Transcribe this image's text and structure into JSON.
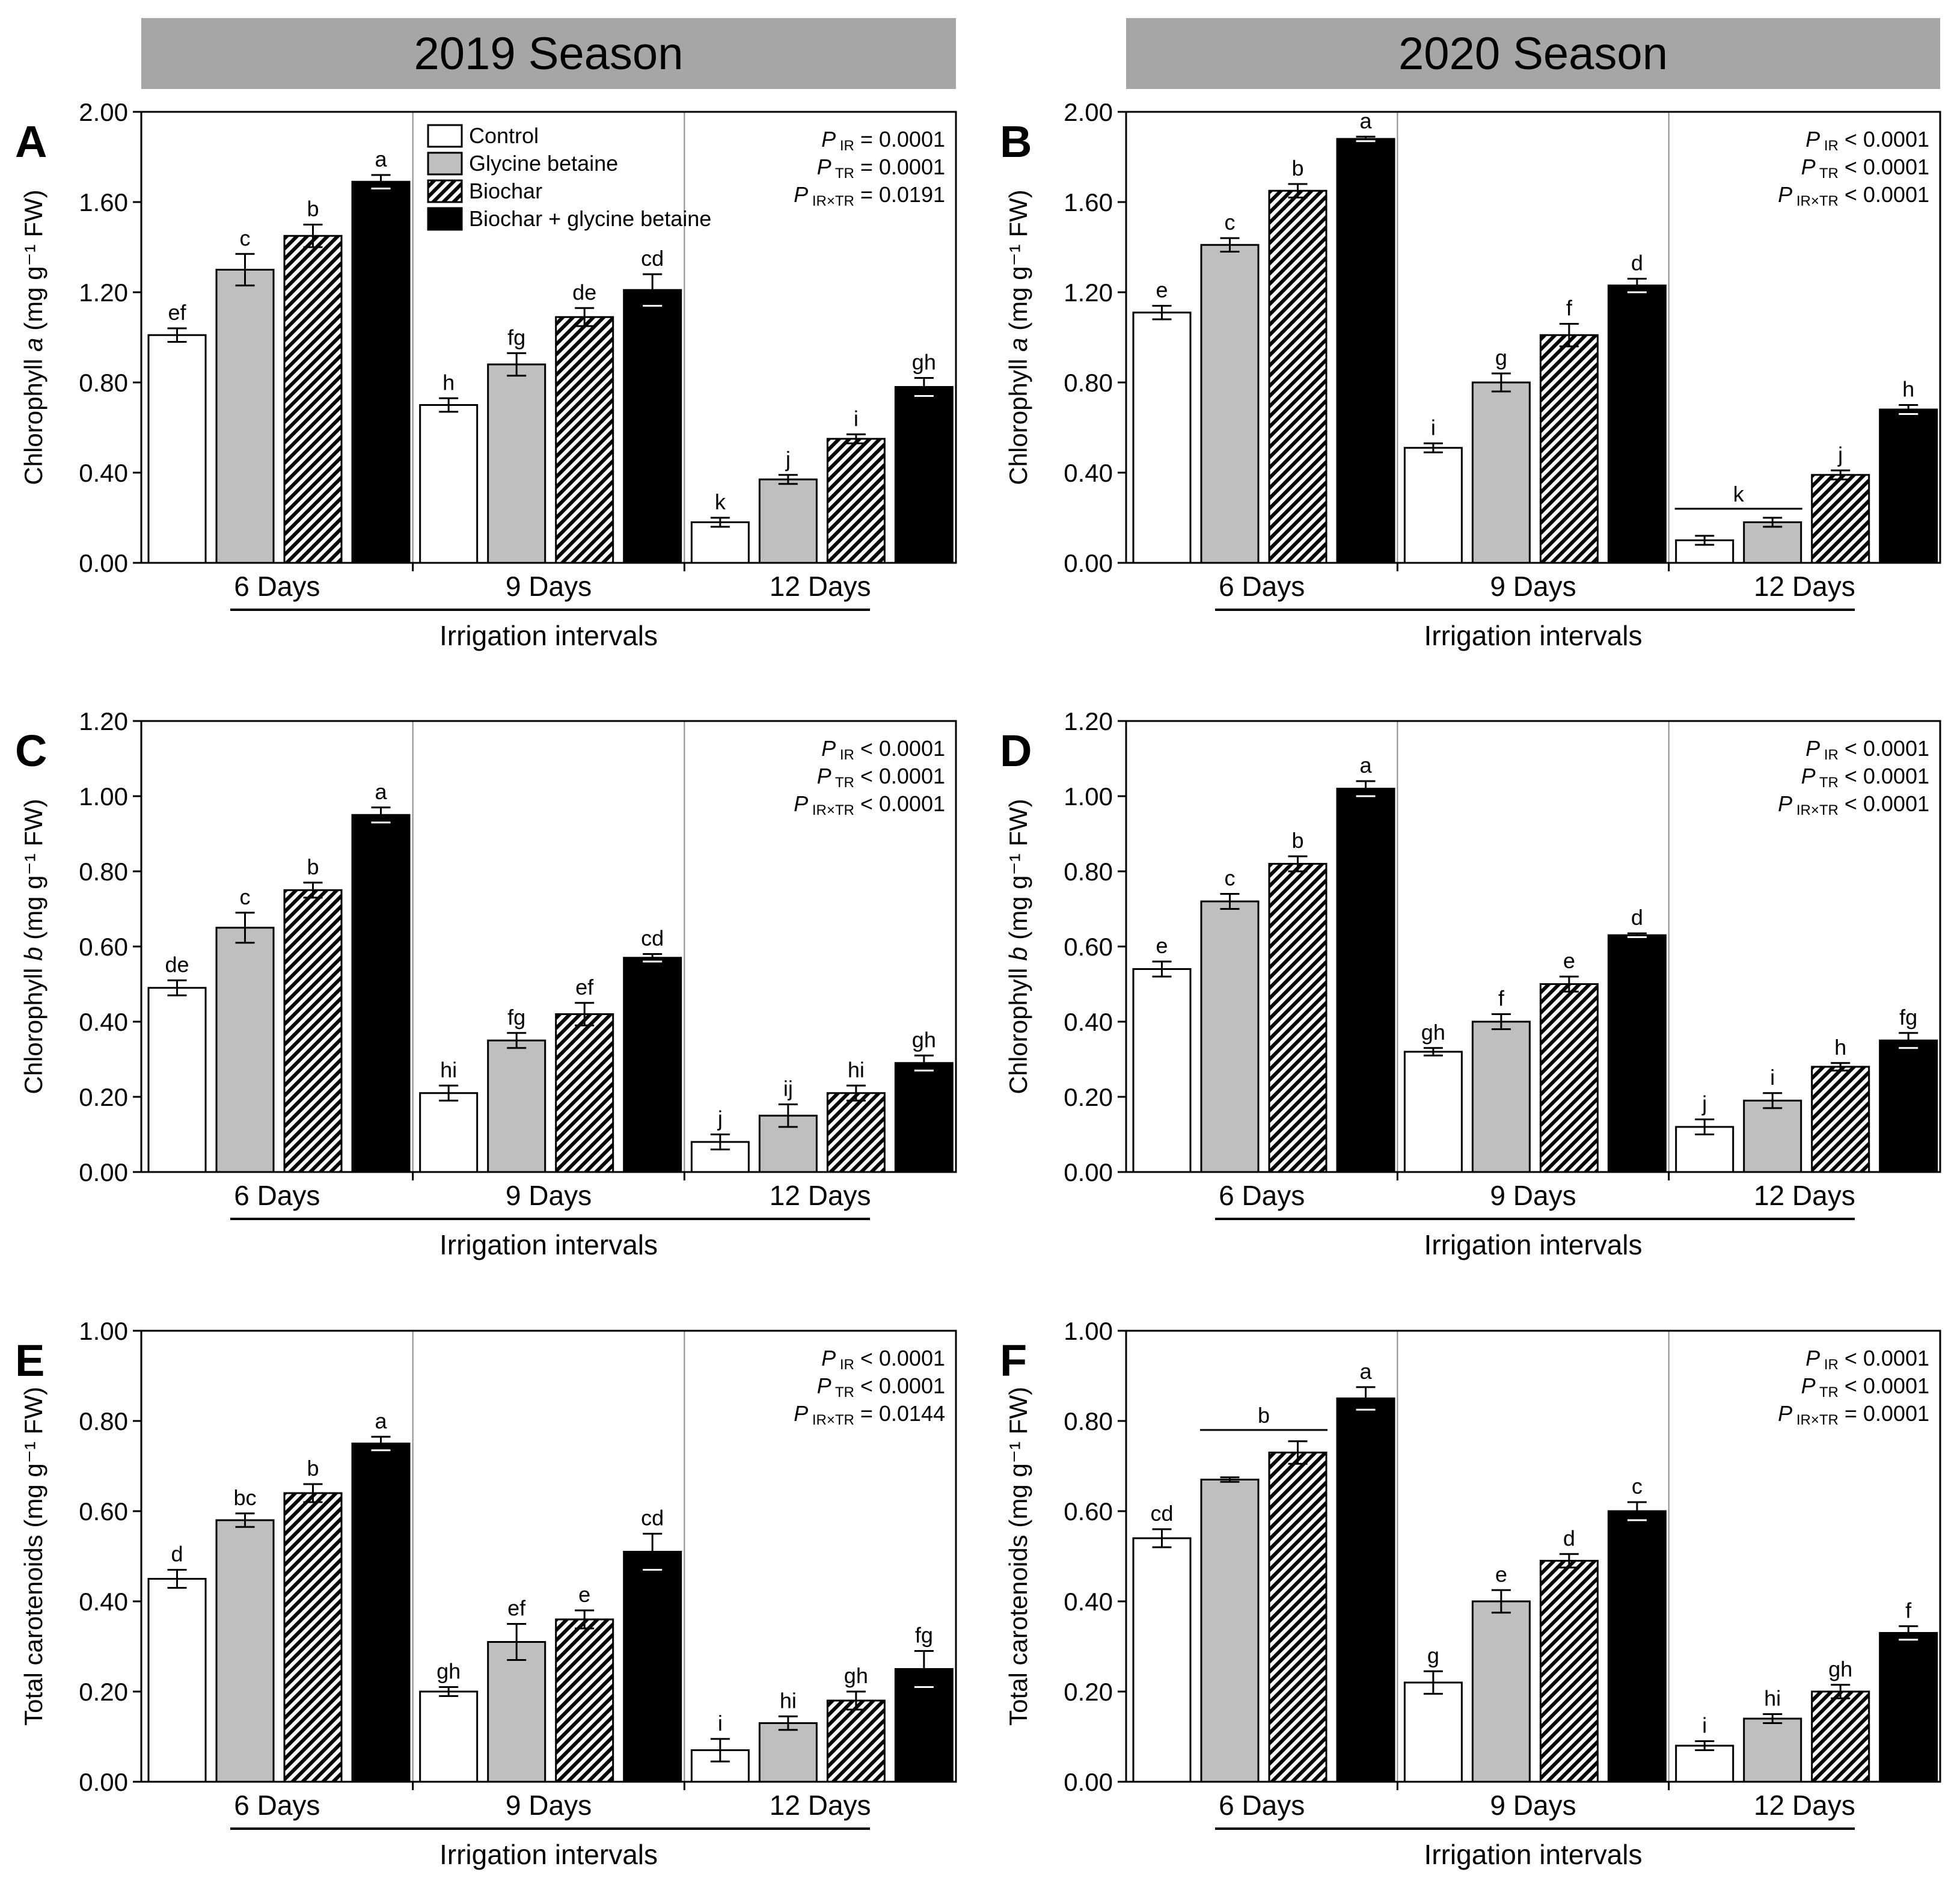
{
  "seasons": {
    "left": "2019 Season",
    "right": "2020 Season"
  },
  "legend": {
    "control": "Control",
    "glycine_betaine": "Glycine betaine",
    "biochar": "Biochar",
    "biochar_gb": "Biochar + glycine betaine"
  },
  "colors": {
    "control": "#ffffff",
    "glycine_betaine": "#bfbfbf",
    "biochar": "hatched",
    "biochar_gb": "#000000"
  },
  "chart_data": [
    {
      "panel": "A",
      "season": "2019 Season",
      "type": "bar",
      "ylabel_main": "Chlorophyll",
      "ylabel_italic": "a",
      "ylabel_unit": "(mg g⁻¹ FW)",
      "ylim": [
        0,
        2.0
      ],
      "yticks": [
        "0.00",
        "0.40",
        "0.80",
        "1.20",
        "1.60",
        "2.00"
      ],
      "xlabel": "Irrigation intervals",
      "groups": [
        "6 Days",
        "9 Days",
        "12 Days"
      ],
      "series": [
        {
          "name": "Control",
          "values": [
            1.01,
            0.7,
            0.18
          ],
          "errors": [
            0.03,
            0.03,
            0.02
          ],
          "letters": [
            "ef",
            "h",
            "k"
          ]
        },
        {
          "name": "Glycine betaine",
          "values": [
            1.3,
            0.88,
            0.37
          ],
          "errors": [
            0.07,
            0.05,
            0.02
          ],
          "letters": [
            "c",
            "fg",
            "j"
          ]
        },
        {
          "name": "Biochar",
          "values": [
            1.45,
            1.09,
            0.55
          ],
          "errors": [
            0.05,
            0.04,
            0.02
          ],
          "letters": [
            "b",
            "de",
            "i"
          ]
        },
        {
          "name": "Biochar + glycine betaine",
          "values": [
            1.69,
            1.21,
            0.78
          ],
          "errors": [
            0.03,
            0.07,
            0.04
          ],
          "letters": [
            "a",
            "cd",
            "gh"
          ]
        }
      ],
      "pvalues": [
        {
          "sub": "IR",
          "rel": "= 0.0001"
        },
        {
          "sub": "TR",
          "rel": "= 0.0001"
        },
        {
          "sub": "IR×TR",
          "rel": "= 0.0191"
        }
      ],
      "group_letters": []
    },
    {
      "panel": "B",
      "season": "2020 Season",
      "type": "bar",
      "ylabel_main": "Chlorophyll",
      "ylabel_italic": "a",
      "ylabel_unit": "(mg g⁻¹ FW)",
      "ylim": [
        0,
        2.0
      ],
      "yticks": [
        "0.00",
        "0.40",
        "0.80",
        "1.20",
        "1.60",
        "2.00"
      ],
      "xlabel": "Irrigation intervals",
      "groups": [
        "6 Days",
        "9 Days",
        "12 Days"
      ],
      "series": [
        {
          "name": "Control",
          "values": [
            1.11,
            0.51,
            0.1
          ],
          "errors": [
            0.03,
            0.02,
            0.02
          ],
          "letters": [
            "e",
            "i",
            ""
          ]
        },
        {
          "name": "Glycine betaine",
          "values": [
            1.41,
            0.8,
            0.18
          ],
          "errors": [
            0.03,
            0.04,
            0.02
          ],
          "letters": [
            "c",
            "g",
            ""
          ]
        },
        {
          "name": "Biochar",
          "values": [
            1.65,
            1.01,
            0.39
          ],
          "errors": [
            0.03,
            0.05,
            0.02
          ],
          "letters": [
            "b",
            "f",
            "j"
          ]
        },
        {
          "name": "Biochar + glycine betaine",
          "values": [
            1.88,
            1.23,
            0.68
          ],
          "errors": [
            0.01,
            0.03,
            0.02
          ],
          "letters": [
            "a",
            "d",
            "h"
          ]
        }
      ],
      "pvalues": [
        {
          "sub": "IR",
          "rel": "< 0.0001"
        },
        {
          "sub": "TR",
          "rel": "< 0.0001"
        },
        {
          "sub": "IR×TR",
          "rel": "< 0.0001"
        }
      ],
      "group_letters": [
        {
          "group": 2,
          "from": 0,
          "to": 1,
          "y": 0.24,
          "letter": "k"
        }
      ]
    },
    {
      "panel": "C",
      "season": "2019 Season",
      "type": "bar",
      "ylabel_main": "Chlorophyll",
      "ylabel_italic": "b",
      "ylabel_unit": "(mg g⁻¹ FW)",
      "ylim": [
        0,
        1.2
      ],
      "yticks": [
        "0.00",
        "0.20",
        "0.40",
        "0.60",
        "0.80",
        "1.00",
        "1.20"
      ],
      "xlabel": "Irrigation intervals",
      "groups": [
        "6 Days",
        "9 Days",
        "12 Days"
      ],
      "series": [
        {
          "name": "Control",
          "values": [
            0.49,
            0.21,
            0.08
          ],
          "errors": [
            0.02,
            0.02,
            0.02
          ],
          "letters": [
            "de",
            "hi",
            "j"
          ]
        },
        {
          "name": "Glycine betaine",
          "values": [
            0.65,
            0.35,
            0.15
          ],
          "errors": [
            0.04,
            0.02,
            0.03
          ],
          "letters": [
            "c",
            "fg",
            "ij"
          ]
        },
        {
          "name": "Biochar",
          "values": [
            0.75,
            0.42,
            0.21
          ],
          "errors": [
            0.02,
            0.03,
            0.02
          ],
          "letters": [
            "b",
            "ef",
            "hi"
          ]
        },
        {
          "name": "Biochar + glycine betaine",
          "values": [
            0.95,
            0.57,
            0.29
          ],
          "errors": [
            0.02,
            0.01,
            0.02
          ],
          "letters": [
            "a",
            "cd",
            "gh"
          ]
        }
      ],
      "pvalues": [
        {
          "sub": "IR",
          "rel": "< 0.0001"
        },
        {
          "sub": "TR",
          "rel": "< 0.0001"
        },
        {
          "sub": "IR×TR",
          "rel": "< 0.0001"
        }
      ],
      "group_letters": []
    },
    {
      "panel": "D",
      "season": "2020 Season",
      "type": "bar",
      "ylabel_main": "Chlorophyll",
      "ylabel_italic": "b",
      "ylabel_unit": "(mg g⁻¹ FW)",
      "ylim": [
        0,
        1.2
      ],
      "yticks": [
        "0.00",
        "0.20",
        "0.40",
        "0.60",
        "0.80",
        "1.00",
        "1.20"
      ],
      "xlabel": "Irrigation intervals",
      "groups": [
        "6 Days",
        "9 Days",
        "12 Days"
      ],
      "series": [
        {
          "name": "Control",
          "values": [
            0.54,
            0.32,
            0.12
          ],
          "errors": [
            0.02,
            0.01,
            0.02
          ],
          "letters": [
            "e",
            "gh",
            "j"
          ]
        },
        {
          "name": "Glycine betaine",
          "values": [
            0.72,
            0.4,
            0.19
          ],
          "errors": [
            0.02,
            0.02,
            0.02
          ],
          "letters": [
            "c",
            "f",
            "i"
          ]
        },
        {
          "name": "Biochar",
          "values": [
            0.82,
            0.5,
            0.28
          ],
          "errors": [
            0.02,
            0.02,
            0.01
          ],
          "letters": [
            "b",
            "e",
            "h"
          ]
        },
        {
          "name": "Biochar + glycine betaine",
          "values": [
            1.02,
            0.63,
            0.35
          ],
          "errors": [
            0.02,
            0.005,
            0.02
          ],
          "letters": [
            "a",
            "d",
            "fg"
          ]
        }
      ],
      "pvalues": [
        {
          "sub": "IR",
          "rel": "< 0.0001"
        },
        {
          "sub": "TR",
          "rel": "< 0.0001"
        },
        {
          "sub": "IR×TR",
          "rel": "< 0.0001"
        }
      ],
      "group_letters": []
    },
    {
      "panel": "E",
      "season": "2019 Season",
      "type": "bar",
      "ylabel_main": "Total carotenoids",
      "ylabel_italic": "",
      "ylabel_unit": "(mg g⁻¹ FW)",
      "ylim": [
        0,
        1.0
      ],
      "yticks": [
        "0.00",
        "0.20",
        "0.40",
        "0.60",
        "0.80",
        "1.00"
      ],
      "xlabel": "Irrigation intervals",
      "groups": [
        "6 Days",
        "9 Days",
        "12 Days"
      ],
      "series": [
        {
          "name": "Control",
          "values": [
            0.45,
            0.2,
            0.07
          ],
          "errors": [
            0.02,
            0.01,
            0.025
          ],
          "letters": [
            "d",
            "gh",
            "i"
          ]
        },
        {
          "name": "Glycine betaine",
          "values": [
            0.58,
            0.31,
            0.13
          ],
          "errors": [
            0.015,
            0.04,
            0.015
          ],
          "letters": [
            "bc",
            "ef",
            "hi"
          ]
        },
        {
          "name": "Biochar",
          "values": [
            0.64,
            0.36,
            0.18
          ],
          "errors": [
            0.02,
            0.02,
            0.02
          ],
          "letters": [
            "b",
            "e",
            "gh"
          ]
        },
        {
          "name": "Biochar + glycine betaine",
          "values": [
            0.75,
            0.51,
            0.25
          ],
          "errors": [
            0.015,
            0.04,
            0.04
          ],
          "letters": [
            "a",
            "cd",
            "fg"
          ]
        }
      ],
      "pvalues": [
        {
          "sub": "IR",
          "rel": "< 0.0001"
        },
        {
          "sub": "TR",
          "rel": "< 0.0001"
        },
        {
          "sub": "IR×TR",
          "rel": "= 0.0144"
        }
      ],
      "group_letters": []
    },
    {
      "panel": "F",
      "season": "2020 Season",
      "type": "bar",
      "ylabel_main": "Total carotenoids",
      "ylabel_italic": "",
      "ylabel_unit": "(mg g⁻¹ FW)",
      "ylim": [
        0,
        1.0
      ],
      "yticks": [
        "0.00",
        "0.20",
        "0.40",
        "0.60",
        "0.80",
        "1.00"
      ],
      "xlabel": "Irrigation intervals",
      "groups": [
        "6 Days",
        "9 Days",
        "12 Days"
      ],
      "series": [
        {
          "name": "Control",
          "values": [
            0.54,
            0.22,
            0.08
          ],
          "errors": [
            0.02,
            0.025,
            0.01
          ],
          "letters": [
            "cd",
            "g",
            "i"
          ]
        },
        {
          "name": "Glycine betaine",
          "values": [
            0.67,
            0.4,
            0.14
          ],
          "errors": [
            0.005,
            0.025,
            0.01
          ],
          "letters": [
            "",
            "e",
            "hi"
          ]
        },
        {
          "name": "Biochar",
          "values": [
            0.73,
            0.49,
            0.2
          ],
          "errors": [
            0.025,
            0.015,
            0.015
          ],
          "letters": [
            "",
            "d",
            "gh"
          ]
        },
        {
          "name": "Biochar + glycine betaine",
          "values": [
            0.85,
            0.6,
            0.33
          ],
          "errors": [
            0.025,
            0.02,
            0.015
          ],
          "letters": [
            "a",
            "c",
            "f"
          ]
        }
      ],
      "pvalues": [
        {
          "sub": "IR",
          "rel": "< 0.0001"
        },
        {
          "sub": "TR",
          "rel": "< 0.0001"
        },
        {
          "sub": "IR×TR",
          "rel": "= 0.0001"
        }
      ],
      "group_letters": [
        {
          "group": 0,
          "from": 1,
          "to": 2,
          "y": 0.78,
          "letter": "b"
        }
      ]
    }
  ]
}
